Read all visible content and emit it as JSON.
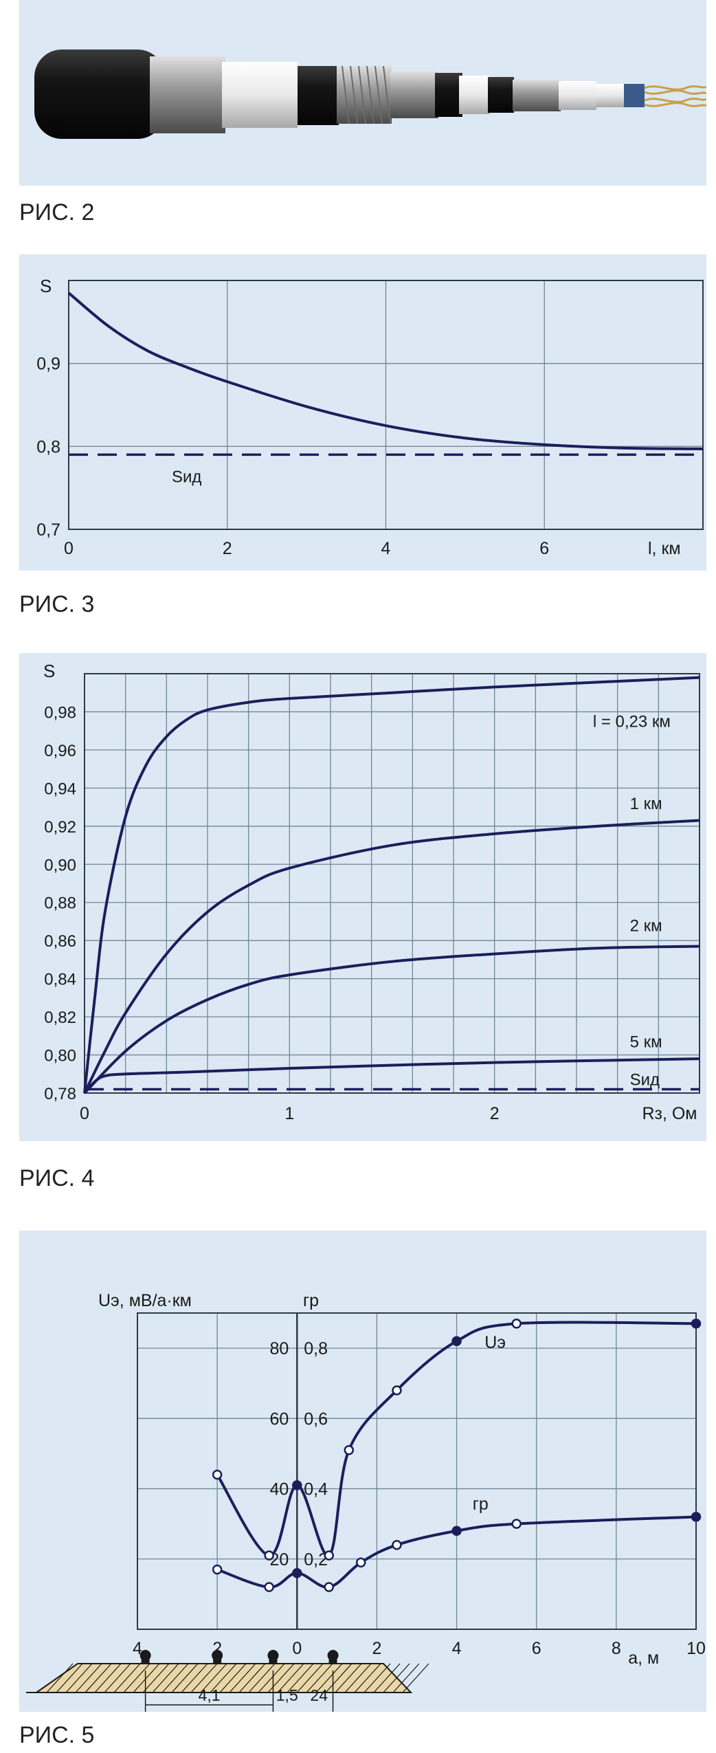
{
  "figures": [
    {
      "caption": "РИС. 2"
    },
    {
      "caption": "РИС. 3"
    },
    {
      "caption": "РИС. 4"
    },
    {
      "caption": "РИС. 5"
    }
  ],
  "colors": {
    "panel_bg": "#dce9f4",
    "curve": "#1a1f5c",
    "grid": "#6f8596"
  },
  "chart_data": [
    {
      "type": "line",
      "ylabel": "S",
      "xlabel": "l, км",
      "xlim": [
        0,
        8
      ],
      "ylim": [
        0.7,
        1.0
      ],
      "x_ticks": [
        "0",
        "2",
        "4",
        "6"
      ],
      "y_ticks": [
        "0,7",
        "0,8",
        "0,9"
      ],
      "grid": true,
      "series": [
        {
          "x": [
            0,
            0.5,
            1,
            1.5,
            2,
            3,
            4,
            5,
            6,
            7,
            8
          ],
          "values": [
            0.985,
            0.945,
            0.915,
            0.895,
            0.878,
            0.848,
            0.825,
            0.81,
            0.802,
            0.798,
            0.797
          ]
        }
      ],
      "reference_line": {
        "label": "Sид",
        "value": 0.79
      }
    },
    {
      "type": "line",
      "ylabel": "S",
      "xlabel": "Rз, Ом",
      "xlim": [
        0,
        3
      ],
      "ylim": [
        0.78,
        1.0
      ],
      "x_ticks": [
        "0",
        "1",
        "2"
      ],
      "y_ticks": [
        "0,78",
        "0,80",
        "0,82",
        "0,84",
        "0,86",
        "0,88",
        "0,90",
        "0,92",
        "0,94",
        "0,96",
        "0,98"
      ],
      "grid": true,
      "series": [
        {
          "name": "l = 0,23 км",
          "x": [
            0,
            0.05,
            0.1,
            0.2,
            0.3,
            0.4,
            0.5,
            0.6,
            0.8,
            1.0,
            1.5,
            2.0,
            3.0
          ],
          "values": [
            0.78,
            0.83,
            0.875,
            0.925,
            0.952,
            0.967,
            0.976,
            0.981,
            0.985,
            0.987,
            0.99,
            0.993,
            0.998
          ]
        },
        {
          "name": "1 км",
          "x": [
            0,
            0.1,
            0.2,
            0.4,
            0.6,
            0.8,
            1.0,
            1.5,
            2.0,
            2.5,
            3.0
          ],
          "values": [
            0.78,
            0.802,
            0.822,
            0.853,
            0.875,
            0.889,
            0.898,
            0.91,
            0.916,
            0.92,
            0.923
          ]
        },
        {
          "name": "2 км",
          "x": [
            0,
            0.2,
            0.4,
            0.6,
            0.8,
            1.0,
            1.5,
            2.0,
            2.5,
            3.0
          ],
          "values": [
            0.78,
            0.802,
            0.818,
            0.829,
            0.837,
            0.842,
            0.849,
            0.853,
            0.856,
            0.857
          ]
        },
        {
          "name": "5 км",
          "x": [
            0,
            0.05,
            0.1,
            0.2,
            0.5,
            1.0,
            2.0,
            3.0
          ],
          "values": [
            0.78,
            0.786,
            0.789,
            0.79,
            0.791,
            0.793,
            0.796,
            0.798
          ]
        }
      ],
      "reference_line": {
        "label": "Sид",
        "value": 0.782
      }
    },
    {
      "type": "line",
      "ylabel": "Uэ, мВ/а·км",
      "ylabel2": "гр",
      "xlabel": "а, м",
      "xlim": [
        -4,
        10
      ],
      "ylim": [
        0,
        90
      ],
      "x_ticks": [
        "4",
        "2",
        "0",
        "2",
        "4",
        "6",
        "8",
        "10"
      ],
      "y_ticks": [
        "20",
        "40",
        "60",
        "80"
      ],
      "y2_ticks": [
        "0,2",
        "0,4",
        "0,6",
        "0,8"
      ],
      "grid": true,
      "series": [
        {
          "name": "Uэ",
          "x": [
            -2,
            -0.7,
            0,
            0.8,
            1.3,
            2.5,
            4,
            5.5,
            10
          ],
          "values": [
            44,
            21,
            41,
            21,
            51,
            68,
            82,
            87,
            87
          ]
        },
        {
          "name": "гр",
          "x": [
            -2,
            -0.7,
            0,
            0.8,
            1.6,
            2.5,
            4,
            5.5,
            10
          ],
          "values": [
            17,
            12,
            16,
            12,
            19,
            24,
            28,
            30,
            32
          ]
        }
      ],
      "dimensions": [
        "4,1",
        "1,5",
        "24"
      ]
    }
  ]
}
